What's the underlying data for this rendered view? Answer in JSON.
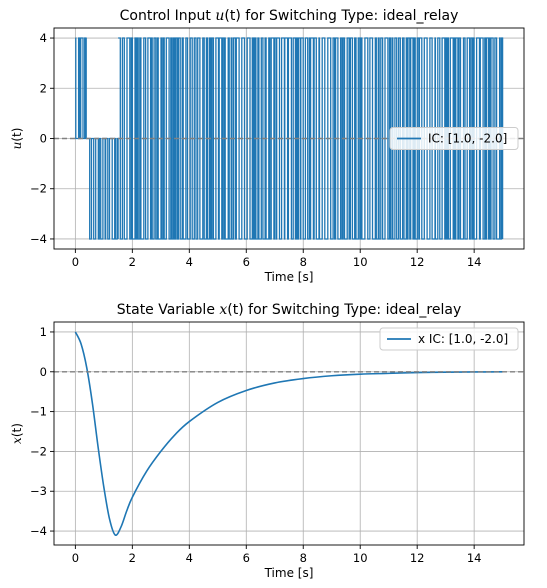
{
  "chart_data": [
    {
      "type": "line",
      "title": "Control Input u(t) for Switching Type: ideal_relay",
      "title_parts": {
        "prefix": "Control Input ",
        "var": "u",
        "arg": "(t)",
        "suffix": " for Switching Type: ideal_relay"
      },
      "xlabel": "Time [s]",
      "ylabel": "u(t)",
      "ylabel_parts": {
        "var": "u",
        "arg": "(t)"
      },
      "xlim": [
        -0.75,
        15.75
      ],
      "ylim": [
        -4.4,
        4.4
      ],
      "xticks": [
        0,
        2,
        4,
        6,
        8,
        10,
        12,
        14
      ],
      "xtick_labels": [
        "0",
        "2",
        "4",
        "6",
        "8",
        "10",
        "12",
        "14"
      ],
      "yticks": [
        -4,
        -2,
        0,
        2,
        4
      ],
      "ytick_labels": [
        "−4",
        "−2",
        "0",
        "2",
        "4"
      ],
      "grid": true,
      "legend_position": "center-right",
      "reference_line": {
        "y": 0,
        "style": "dashed",
        "color": "#808080"
      },
      "series": [
        {
          "name": "IC: [1.0, -2.0]",
          "color": "#1f77b4",
          "style": "switching",
          "levels": [
            -4,
            0,
            4
          ],
          "segments": [
            {
              "t": [
                0.0,
                0.38
              ],
              "level": 4,
              "switching": [
                4,
                0
              ]
            },
            {
              "t": [
                0.38,
                0.42
              ],
              "level": 0
            },
            {
              "t": [
                0.42,
                1.5
              ],
              "level": 0,
              "switching": [
                0,
                -4
              ]
            },
            {
              "t": [
                1.5,
                15.0
              ],
              "level": 0,
              "switching": [
                4,
                -4
              ]
            }
          ]
        }
      ]
    },
    {
      "type": "line",
      "title": "State Variable x(t) for Switching Type: ideal_relay",
      "title_parts": {
        "prefix": "State Variable ",
        "var": "x",
        "arg": "(t)",
        "suffix": " for Switching Type: ideal_relay"
      },
      "xlabel": "Time [s]",
      "ylabel": "x(t)",
      "ylabel_parts": {
        "var": "x",
        "arg": "(t)"
      },
      "xlim": [
        -0.75,
        15.75
      ],
      "ylim": [
        -4.35,
        1.25
      ],
      "xticks": [
        0,
        2,
        4,
        6,
        8,
        10,
        12,
        14
      ],
      "xtick_labels": [
        "0",
        "2",
        "4",
        "6",
        "8",
        "10",
        "12",
        "14"
      ],
      "yticks": [
        -4,
        -3,
        -2,
        -1,
        0,
        1
      ],
      "ytick_labels": [
        "−4",
        "−3",
        "−2",
        "−1",
        "0",
        "1"
      ],
      "grid": true,
      "legend_position": "top-right",
      "reference_line": {
        "y": 0,
        "style": "dashed",
        "color": "#808080"
      },
      "series": [
        {
          "name": "x IC: [1.0, -2.0]",
          "color": "#1f77b4",
          "x": [
            0,
            0.2,
            0.4,
            0.6,
            0.8,
            1.0,
            1.2,
            1.4,
            1.6,
            1.8,
            2.0,
            2.5,
            3.0,
            3.5,
            4.0,
            5.0,
            6.0,
            7.0,
            8.0,
            9.0,
            10.0,
            11.0,
            12.0,
            13.0,
            14.0,
            15.0
          ],
          "values": [
            1.0,
            0.7,
            0.1,
            -0.8,
            -1.9,
            -2.9,
            -3.7,
            -4.1,
            -3.9,
            -3.5,
            -3.15,
            -2.5,
            -2.0,
            -1.58,
            -1.25,
            -0.77,
            -0.47,
            -0.28,
            -0.17,
            -0.1,
            -0.06,
            -0.04,
            -0.02,
            -0.01,
            -0.005,
            0.0
          ]
        }
      ]
    }
  ]
}
